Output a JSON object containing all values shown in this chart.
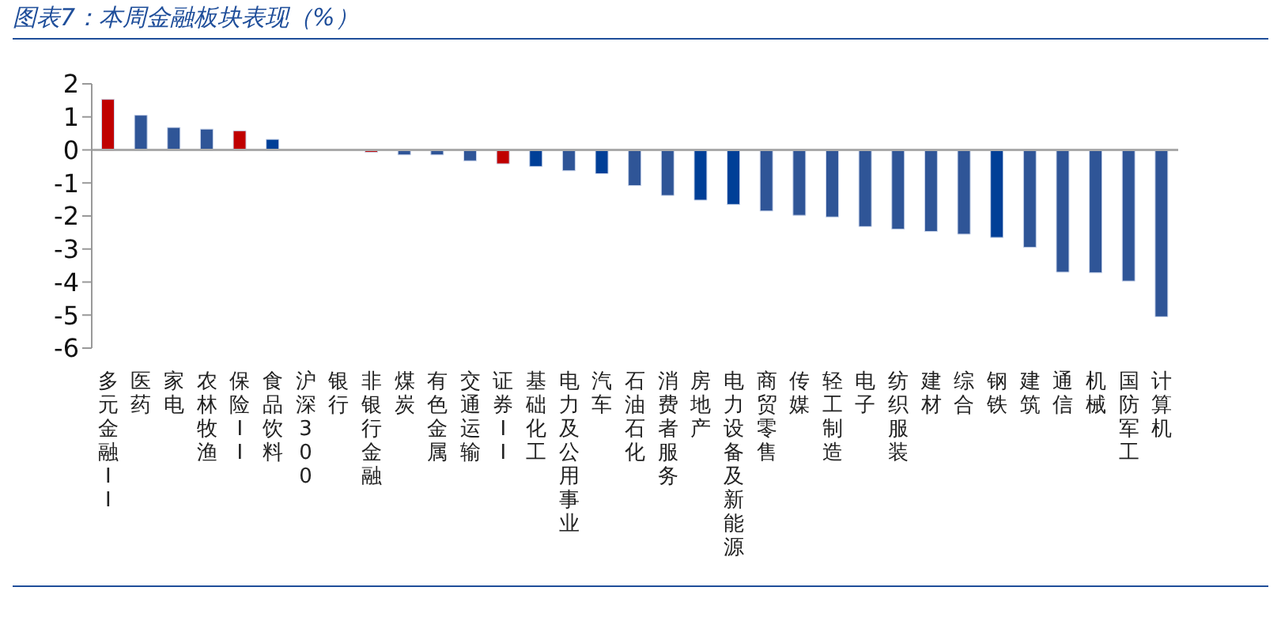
{
  "chart_data": {
    "type": "bar",
    "title": "图表7：本周金融板块表现（%）",
    "categories": [
      "多元金融II",
      "医药",
      "家电",
      "农林牧渔",
      "保险II",
      "食品饮料",
      "沪深300",
      "银行",
      "非银行金融",
      "煤炭",
      "有色金属",
      "交通运输",
      "证券II",
      "基础化工",
      "电力及公用事业",
      "汽车",
      "石油石化",
      "消费者服务",
      "房地产",
      "电力设备及新能源",
      "商贸零售",
      "传媒",
      "轻工制造",
      "电子",
      "纺织服装",
      "建材",
      "综合",
      "钢铁",
      "建筑",
      "通信",
      "机械",
      "国防军工",
      "计算机"
    ],
    "values": [
      1.53,
      1.05,
      0.68,
      0.63,
      0.58,
      0.32,
      null,
      null,
      -0.07,
      -0.15,
      -0.15,
      -0.33,
      -0.42,
      -0.5,
      -0.63,
      -0.72,
      -1.08,
      -1.38,
      -1.52,
      -1.65,
      -1.85,
      -1.98,
      -2.03,
      -2.32,
      -2.4,
      -2.47,
      -2.55,
      -2.65,
      -2.95,
      -3.7,
      -3.72,
      -3.97,
      -5.05
    ],
    "colors": [
      "#c00000",
      "#2f5597",
      "#2f5597",
      "#2f5597",
      "#c00000",
      "#003f97",
      "#2f5597",
      "#c00000",
      "#c00000",
      "#2f5597",
      "#2f5597",
      "#2f5597",
      "#c00000",
      "#003f97",
      "#2f5597",
      "#003f97",
      "#2f5597",
      "#2f5597",
      "#003f97",
      "#003f97",
      "#2f5597",
      "#2f5597",
      "#2f5597",
      "#2f5597",
      "#2f5597",
      "#2f5597",
      "#2f5597",
      "#003f97",
      "#2f5597",
      "#2f5597",
      "#2f5597",
      "#2f5597",
      "#2f5597"
    ],
    "ylim": [
      -6,
      2
    ],
    "yticks": [
      -6,
      -5,
      -4,
      -3,
      -2,
      -1,
      0,
      1,
      2
    ]
  }
}
